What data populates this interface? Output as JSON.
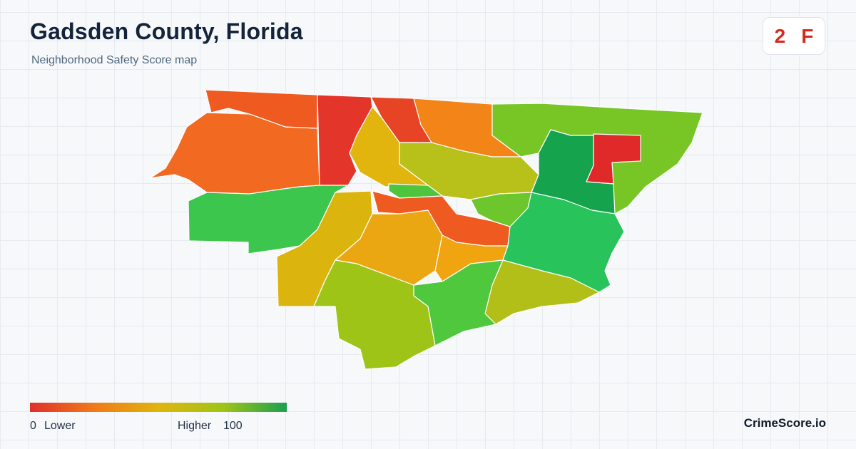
{
  "header": {
    "title": "Gadsden County, Florida",
    "subtitle": "Neighborhood Safety Score map"
  },
  "grade": {
    "score": "2",
    "letter": "F",
    "color": "#d52b1e"
  },
  "legend": {
    "min_value": "0",
    "min_label": "Lower",
    "max_label": "Higher",
    "max_value": "100",
    "colors": [
      "#e0302a",
      "#f07a1a",
      "#e0b40c",
      "#a0c418",
      "#1aa04e"
    ]
  },
  "brand": "CrimeScore.io",
  "map": {
    "regions": [
      {
        "name": "northwest-far",
        "score": 15
      },
      {
        "name": "northwest-corner",
        "score": 20
      },
      {
        "name": "north-central-west",
        "score": 5
      },
      {
        "name": "north-central-strip",
        "score": 8
      },
      {
        "name": "north-central",
        "score": 30
      },
      {
        "name": "north-central-east",
        "score": 60
      },
      {
        "name": "northeast",
        "score": 62
      },
      {
        "name": "northeast-corner",
        "score": 4
      },
      {
        "name": "central-north",
        "score": 45
      },
      {
        "name": "central",
        "score": 18
      },
      {
        "name": "east-central",
        "score": 90
      },
      {
        "name": "west",
        "score": 85
      },
      {
        "name": "southwest",
        "score": 40
      },
      {
        "name": "south-central-west",
        "score": 35
      },
      {
        "name": "south-central",
        "score": 20
      },
      {
        "name": "southeast-west",
        "score": 55
      },
      {
        "name": "southeast",
        "score": 80
      },
      {
        "name": "south",
        "score": 60
      },
      {
        "name": "south-east-low",
        "score": 50
      }
    ]
  }
}
